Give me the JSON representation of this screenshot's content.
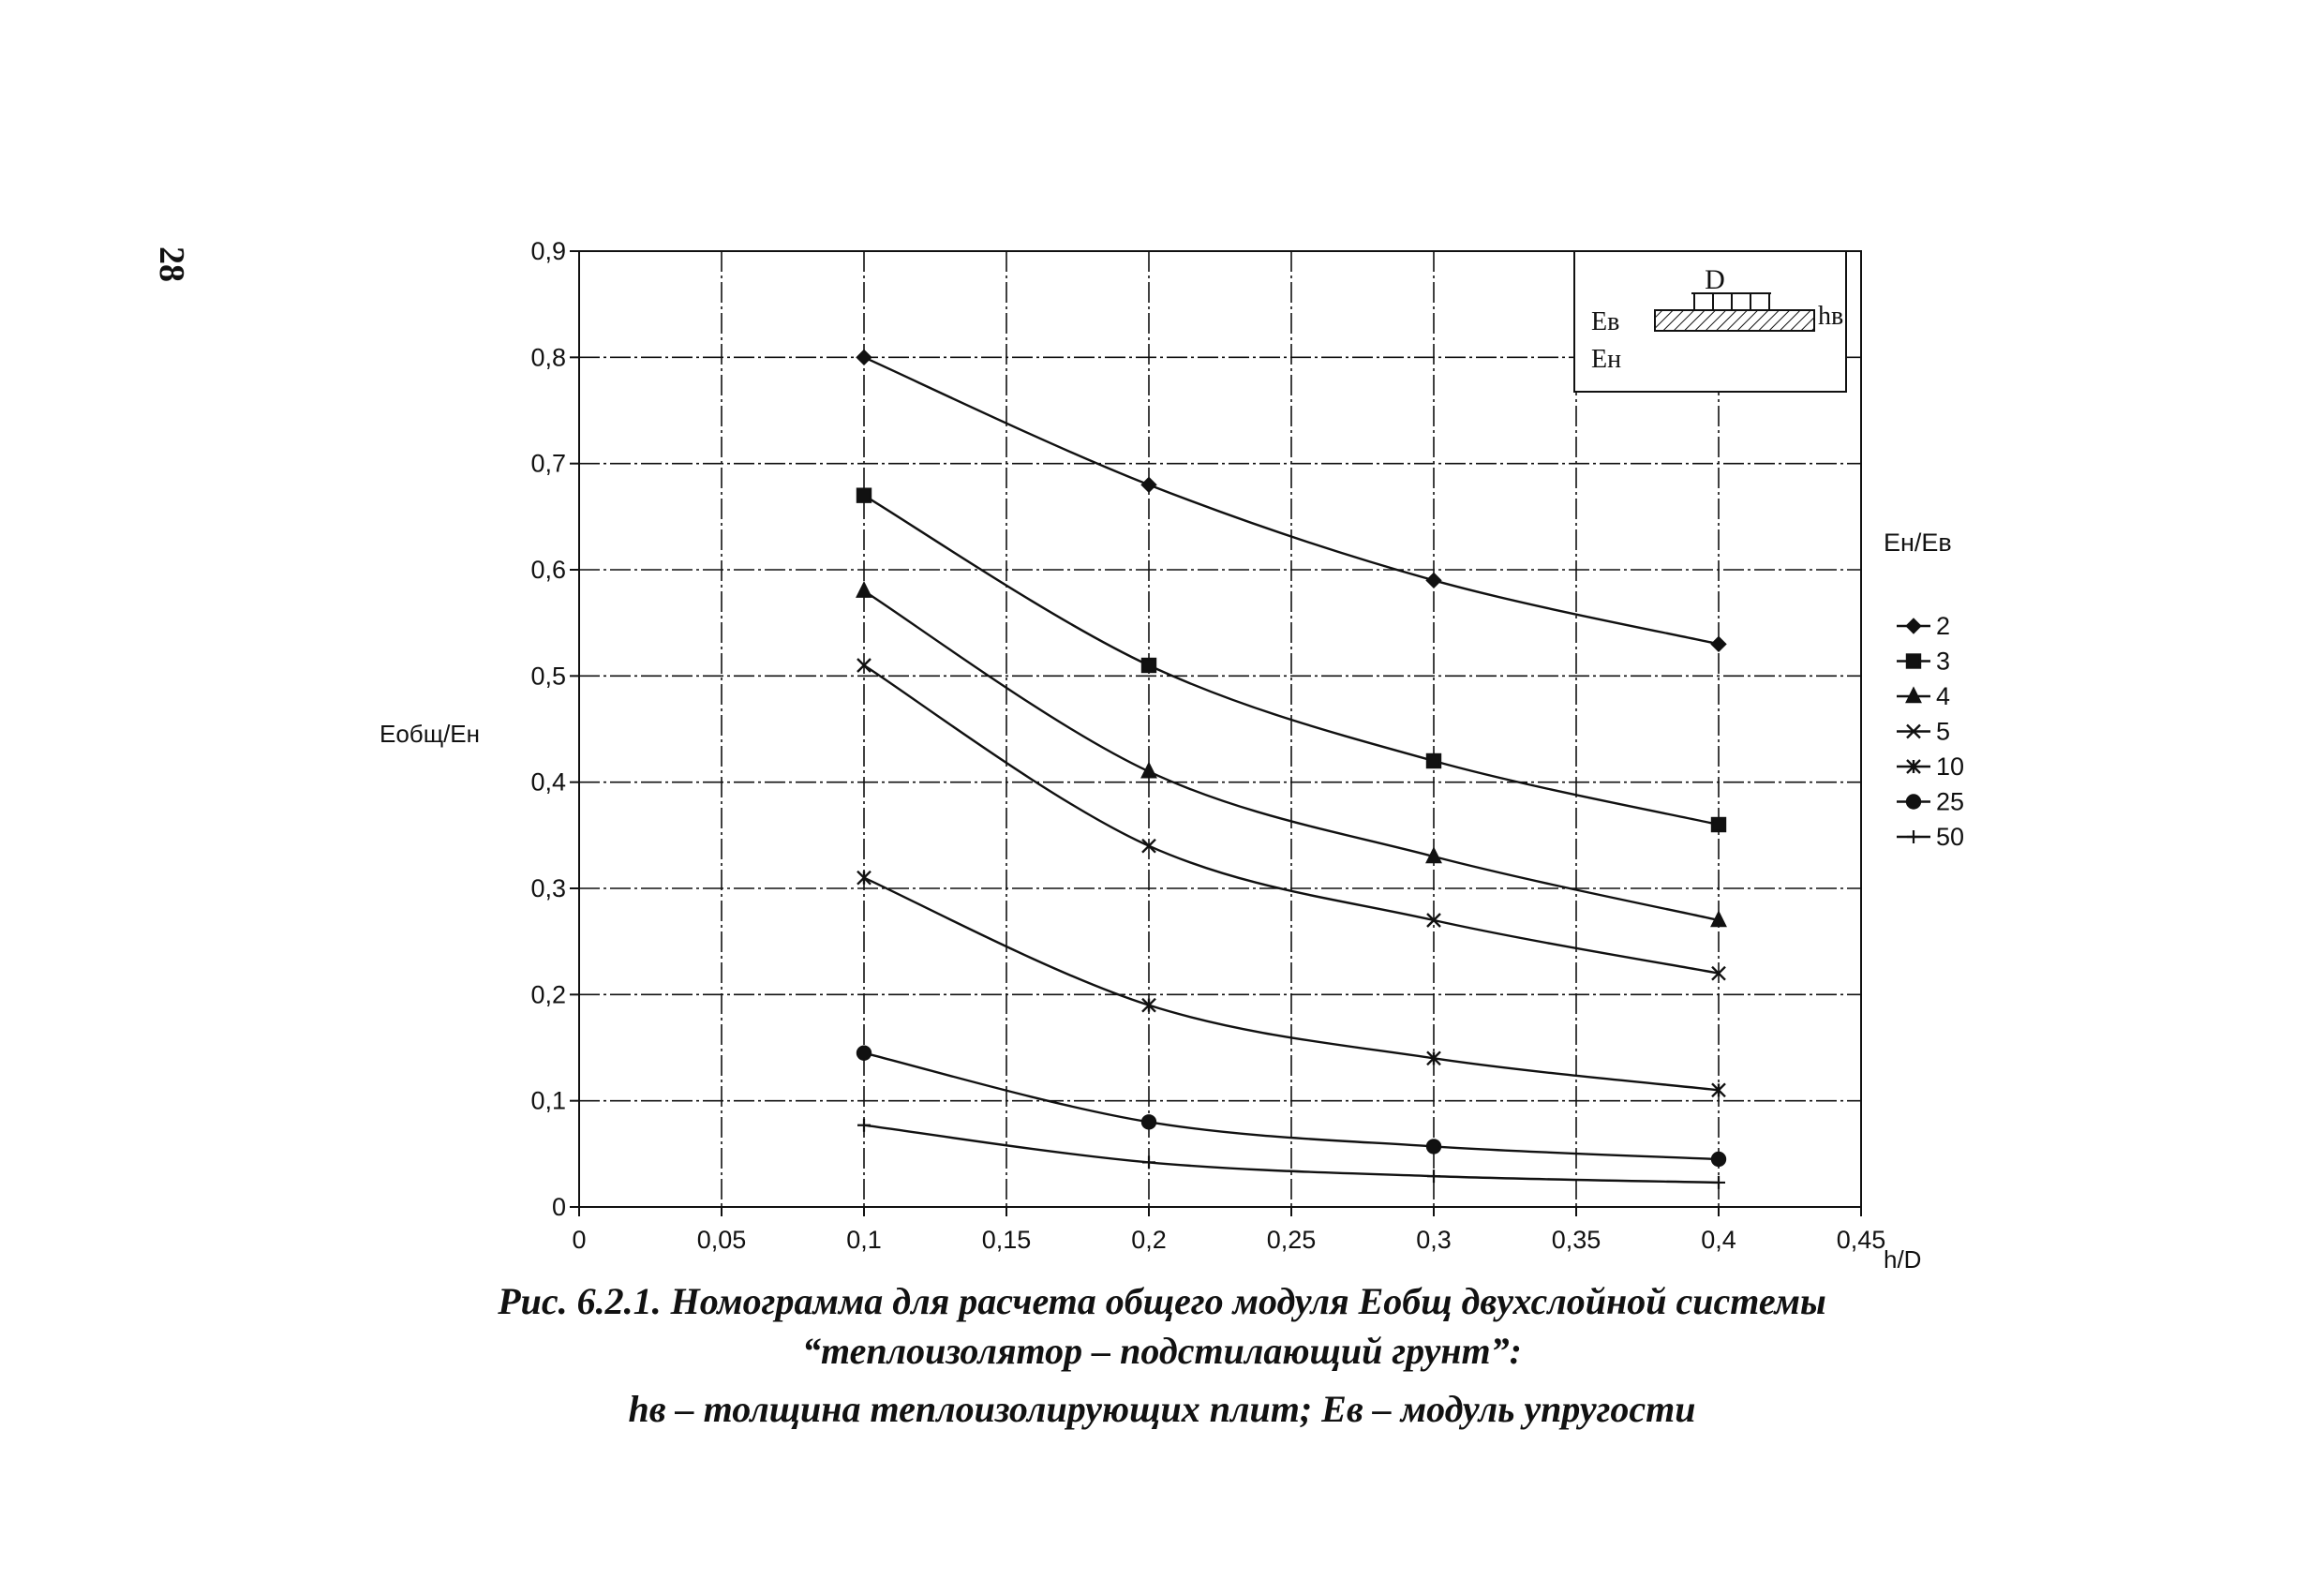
{
  "page_number": "28",
  "caption": {
    "line1": "Рис. 6.2.1.   Номограмма для расчета общего модуля Еобщ двухслойной системы",
    "line2": "“теплоизолятор – подстилающий грунт”:",
    "line3": "hв – толщина теплоизолирующих  плит; Ев – модуль упругости"
  },
  "inset": {
    "d_label": "D",
    "e_upper": "Eв",
    "e_lower": "Eн",
    "h_label": "hв"
  },
  "chart_data": {
    "type": "line",
    "title": "",
    "xlabel": "h/D",
    "ylabel": "Еобщ/Ен",
    "xlim": [
      0,
      0.45
    ],
    "ylim": [
      0,
      0.9
    ],
    "x_ticks": [
      0,
      0.05,
      0.1,
      0.15,
      0.2,
      0.25,
      0.3,
      0.35,
      0.4,
      0.45
    ],
    "x_tick_labels": [
      "0",
      "0,05",
      "0,1",
      "0,15",
      "0,2",
      "0,25",
      "0,3",
      "0,35",
      "0,4",
      "0,45"
    ],
    "y_ticks": [
      0,
      0.1,
      0.2,
      0.3,
      0.4,
      0.5,
      0.6,
      0.7,
      0.8,
      0.9
    ],
    "y_tick_labels": [
      "0",
      "0,1",
      "0,2",
      "0,3",
      "0,4",
      "0,5",
      "0,6",
      "0,7",
      "0,8",
      "0,9"
    ],
    "grid": true,
    "legend_title": "Ен/Ев",
    "legend_position": "right",
    "x": [
      0.1,
      0.2,
      0.3,
      0.4
    ],
    "series": [
      {
        "name": "2",
        "marker": "diamond",
        "values": [
          0.8,
          0.68,
          0.59,
          0.53
        ]
      },
      {
        "name": "3",
        "marker": "square",
        "values": [
          0.67,
          0.51,
          0.42,
          0.36
        ]
      },
      {
        "name": "4",
        "marker": "triangle",
        "values": [
          0.58,
          0.41,
          0.33,
          0.27
        ]
      },
      {
        "name": "5",
        "marker": "x",
        "values": [
          0.51,
          0.34,
          0.27,
          0.22
        ]
      },
      {
        "name": "10",
        "marker": "star",
        "values": [
          0.31,
          0.19,
          0.14,
          0.11
        ]
      },
      {
        "name": "25",
        "marker": "circle",
        "values": [
          0.145,
          0.08,
          0.057,
          0.045
        ]
      },
      {
        "name": "50",
        "marker": "plus",
        "values": [
          0.077,
          0.042,
          0.029,
          0.023
        ]
      }
    ]
  }
}
